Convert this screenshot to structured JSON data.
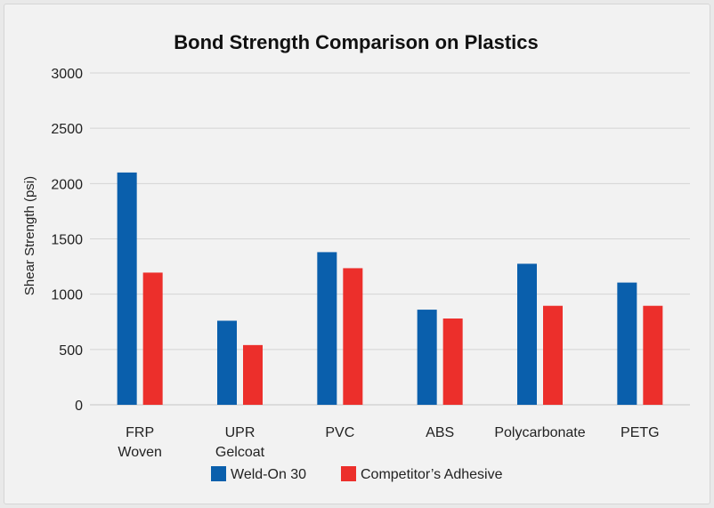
{
  "chart_data": {
    "type": "bar",
    "title": "Bond Strength Comparison on Plastics",
    "ylabel": "Shear Strength (psi)",
    "xlabel": "",
    "ylim": [
      0,
      3000
    ],
    "yticks": [
      0,
      500,
      1000,
      1500,
      2000,
      2500,
      3000
    ],
    "grid": true,
    "legend_position": "bottom",
    "categories": [
      [
        "FRP",
        "Woven"
      ],
      [
        "UPR",
        "Gelcoat"
      ],
      [
        "PVC"
      ],
      [
        "ABS"
      ],
      [
        "Polycarbonate"
      ],
      [
        "PETG"
      ]
    ],
    "series": [
      {
        "name": "Weld-On 30",
        "color": "#0a5fac",
        "values": [
          2100,
          760,
          1380,
          860,
          1275,
          1105
        ]
      },
      {
        "name": "Competitor’s Adhesive",
        "color": "#ec2f2b",
        "values": [
          1195,
          540,
          1235,
          780,
          895,
          895
        ]
      }
    ]
  }
}
